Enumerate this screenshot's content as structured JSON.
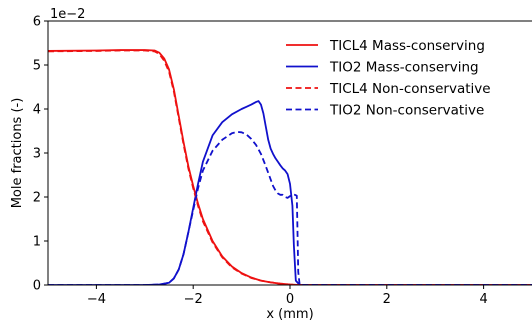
{
  "chart_data": {
    "type": "line",
    "xlabel": "x (mm)",
    "ylabel": "Mole fractions (-)",
    "y_offset_label": "1e−2",
    "xlim": [
      -5,
      5
    ],
    "ylim": [
      0,
      6
    ],
    "x_ticks": [
      -4,
      -2,
      0,
      2,
      4
    ],
    "x_tick_labels": [
      "−4",
      "−2",
      "0",
      "2",
      "4"
    ],
    "y_ticks": [
      0,
      1,
      2,
      3,
      4,
      5,
      6
    ],
    "y_tick_labels": [
      "0",
      "1",
      "2",
      "3",
      "4",
      "5",
      "6"
    ],
    "grid": false,
    "legend_position": "top-right",
    "series": [
      {
        "name": "TICL4 Mass-conserving",
        "color": "#ee1111",
        "dash": "solid",
        "x": [
          -5,
          -4,
          -3.5,
          -3,
          -2.8,
          -2.7,
          -2.6,
          -2.5,
          -2.4,
          -2.3,
          -2.2,
          -2.1,
          -2.0,
          -1.9,
          -1.8,
          -1.6,
          -1.4,
          -1.2,
          -1.0,
          -0.8,
          -0.6,
          -0.4,
          -0.2,
          0.0,
          0.2,
          0.5,
          1,
          2,
          3,
          4,
          5
        ],
        "y": [
          5.32,
          5.33,
          5.34,
          5.34,
          5.33,
          5.28,
          5.15,
          4.9,
          4.45,
          3.85,
          3.25,
          2.7,
          2.25,
          1.85,
          1.5,
          1.0,
          0.65,
          0.42,
          0.27,
          0.17,
          0.1,
          0.06,
          0.03,
          0.01,
          0.0,
          0.0,
          0.0,
          0.0,
          0.0,
          0.0,
          0.0
        ]
      },
      {
        "name": "TIO2 Mass-conserving",
        "color": "#1111cc",
        "dash": "solid",
        "x": [
          -5,
          -3,
          -2.7,
          -2.5,
          -2.4,
          -2.3,
          -2.2,
          -2.1,
          -2.0,
          -1.9,
          -1.8,
          -1.6,
          -1.4,
          -1.2,
          -1.0,
          -0.9,
          -0.8,
          -0.7,
          -0.65,
          -0.6,
          -0.55,
          -0.5,
          -0.45,
          -0.4,
          -0.35,
          -0.3,
          -0.25,
          -0.2,
          -0.15,
          -0.1,
          -0.05,
          0.0,
          0.05,
          0.08,
          0.12,
          0.2,
          1,
          2,
          3,
          4,
          5
        ],
        "y": [
          0.0,
          0.0,
          0.01,
          0.05,
          0.15,
          0.35,
          0.7,
          1.2,
          1.75,
          2.3,
          2.8,
          3.4,
          3.7,
          3.88,
          4.0,
          4.05,
          4.1,
          4.16,
          4.18,
          4.1,
          3.9,
          3.6,
          3.3,
          3.1,
          2.98,
          2.88,
          2.8,
          2.72,
          2.65,
          2.6,
          2.52,
          2.3,
          1.8,
          0.9,
          0.1,
          0.0,
          0.0,
          0.0,
          0.0,
          0.0,
          0.0
        ]
      },
      {
        "name": "TICL4 Non-conservative",
        "color": "#ee1111",
        "dash": "dashed",
        "x": [
          -5,
          -4,
          -3.5,
          -3,
          -2.8,
          -2.7,
          -2.6,
          -2.5,
          -2.4,
          -2.3,
          -2.2,
          -2.1,
          -2.0,
          -1.9,
          -1.8,
          -1.6,
          -1.4,
          -1.2,
          -1.0,
          -0.8,
          -0.6,
          -0.4,
          -0.2,
          0.0,
          0.2,
          0.5,
          1,
          2,
          3,
          4,
          5
        ],
        "y": [
          5.31,
          5.32,
          5.33,
          5.33,
          5.31,
          5.25,
          5.1,
          4.85,
          4.4,
          3.8,
          3.2,
          2.65,
          2.2,
          1.8,
          1.45,
          0.97,
          0.63,
          0.4,
          0.26,
          0.16,
          0.1,
          0.06,
          0.03,
          0.01,
          0.0,
          0.0,
          0.0,
          0.0,
          0.0,
          0.0,
          0.0
        ]
      },
      {
        "name": "TIO2 Non-conservative",
        "color": "#1111cc",
        "dash": "dashed",
        "x": [
          -5,
          -3,
          -2.7,
          -2.5,
          -2.4,
          -2.3,
          -2.2,
          -2.1,
          -2.0,
          -1.9,
          -1.8,
          -1.6,
          -1.4,
          -1.2,
          -1.1,
          -1.0,
          -0.9,
          -0.8,
          -0.7,
          -0.6,
          -0.5,
          -0.45,
          -0.4,
          -0.35,
          -0.3,
          -0.25,
          -0.2,
          -0.15,
          -0.1,
          -0.05,
          0.0,
          0.05,
          0.1,
          0.14,
          0.15,
          0.17,
          0.2,
          1,
          2,
          3,
          4,
          5
        ],
        "y": [
          0.0,
          0.0,
          0.01,
          0.05,
          0.15,
          0.35,
          0.7,
          1.2,
          1.7,
          2.2,
          2.6,
          3.05,
          3.3,
          3.45,
          3.48,
          3.47,
          3.42,
          3.32,
          3.18,
          2.98,
          2.7,
          2.55,
          2.4,
          2.25,
          2.15,
          2.08,
          2.05,
          2.05,
          2.0,
          1.98,
          2.02,
          2.05,
          2.05,
          2.03,
          1.5,
          0.3,
          0.0,
          0.0,
          0.0,
          0.0,
          0.0,
          0.0
        ]
      }
    ]
  }
}
